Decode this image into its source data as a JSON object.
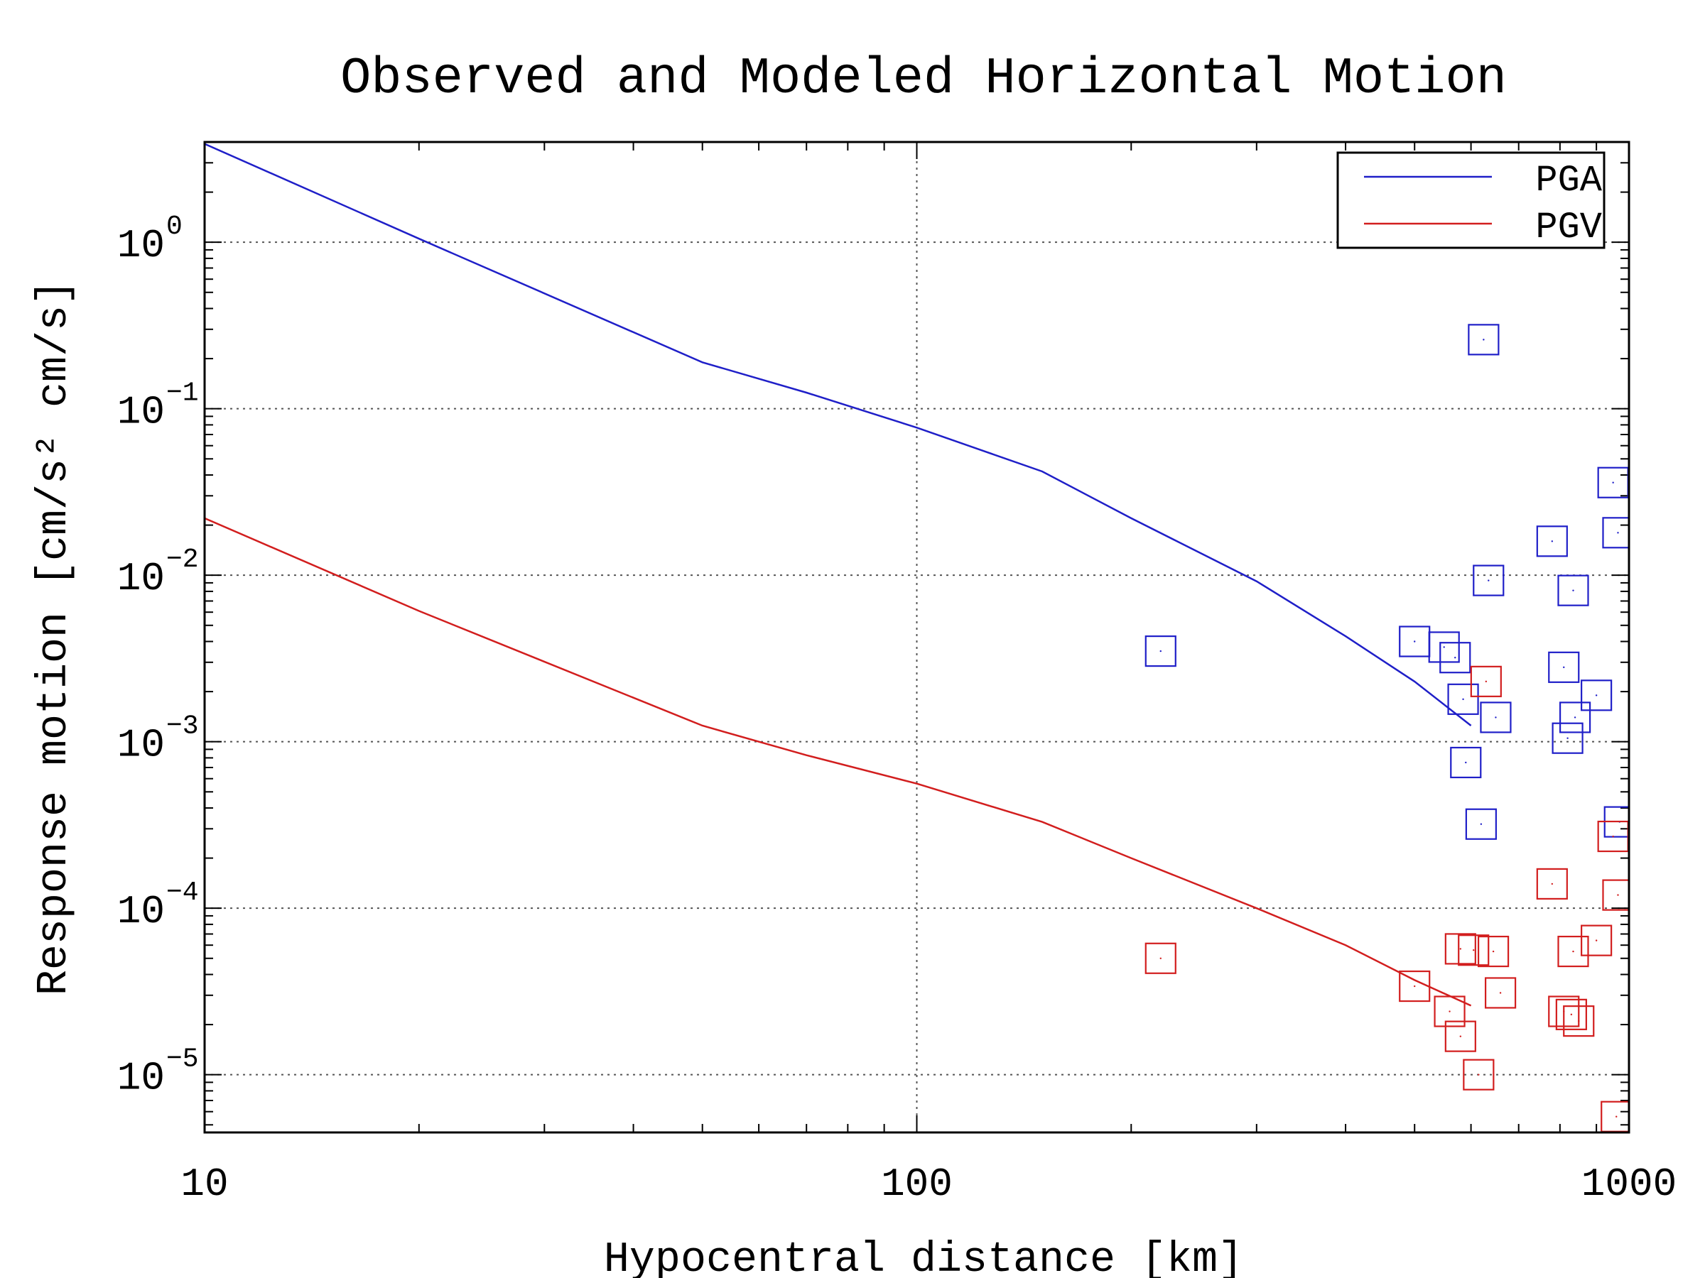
{
  "chart_data": {
    "type": "scatter",
    "title": "Observed and Modeled Horizontal Motion",
    "xlabel": "Hypocentral distance [km]",
    "ylabel": "Response motion [cm/s² cm/s]",
    "xscale": "log",
    "yscale": "log",
    "xlim": [
      10,
      1000
    ],
    "ylim": [
      4.5e-06,
      4
    ],
    "x_ticks": [
      {
        "value": 10,
        "label": "10"
      },
      {
        "value": 100,
        "label": "100"
      },
      {
        "value": 1000,
        "label": "1000"
      }
    ],
    "y_ticks": [
      {
        "value": 1e-05,
        "base": "10",
        "exp": "−5"
      },
      {
        "value": 0.0001,
        "base": "10",
        "exp": "−4"
      },
      {
        "value": 0.001,
        "base": "10",
        "exp": "−3"
      },
      {
        "value": 0.01,
        "base": "10",
        "exp": "−2"
      },
      {
        "value": 0.1,
        "base": "10",
        "exp": "−1"
      },
      {
        "value": 1,
        "base": "10",
        "exp": "0"
      }
    ],
    "grid": true,
    "legend_position": "top-right",
    "series": [
      {
        "name": "PGA",
        "color": "#1f1fc8",
        "model_curve": [
          [
            10,
            3.9
          ],
          [
            20,
            1.05
          ],
          [
            50,
            0.19
          ],
          [
            70,
            0.125
          ],
          [
            100,
            0.077
          ],
          [
            150,
            0.042
          ],
          [
            200,
            0.022
          ],
          [
            300,
            0.0092
          ],
          [
            400,
            0.0043
          ],
          [
            500,
            0.0023
          ],
          [
            600,
            0.00125
          ]
        ],
        "observations": [
          [
            220,
            0.0035
          ],
          [
            500,
            0.004
          ],
          [
            550,
            0.0037
          ],
          [
            570,
            0.0032
          ],
          [
            585,
            0.0018
          ],
          [
            590,
            0.00075
          ],
          [
            620,
            0.00032
          ],
          [
            625,
            0.26
          ],
          [
            635,
            0.0093
          ],
          [
            650,
            0.0014
          ],
          [
            780,
            0.016
          ],
          [
            810,
            0.0028
          ],
          [
            820,
            0.00105
          ],
          [
            835,
            0.0081
          ],
          [
            840,
            0.0014
          ],
          [
            900,
            0.0019
          ],
          [
            950,
            0.036
          ],
          [
            965,
            0.018
          ],
          [
            970,
            0.00033
          ]
        ]
      },
      {
        "name": "PGV",
        "color": "#d21e1e",
        "model_curve": [
          [
            10,
            0.022
          ],
          [
            20,
            0.0061
          ],
          [
            50,
            0.00125
          ],
          [
            70,
            0.00083
          ],
          [
            100,
            0.00056
          ],
          [
            150,
            0.00033
          ],
          [
            200,
            0.0002
          ],
          [
            300,
            0.0001
          ],
          [
            400,
            6e-05
          ],
          [
            500,
            3.7e-05
          ],
          [
            600,
            2.6e-05
          ]
        ],
        "observations": [
          [
            220,
            5e-05
          ],
          [
            500,
            3.4e-05
          ],
          [
            560,
            2.4e-05
          ],
          [
            580,
            1.7e-05
          ],
          [
            580,
            5.7e-05
          ],
          [
            605,
            5.6e-05
          ],
          [
            615,
            1e-05
          ],
          [
            630,
            0.0023
          ],
          [
            645,
            5.5e-05
          ],
          [
            660,
            3.1e-05
          ],
          [
            780,
            0.00014
          ],
          [
            810,
            2.4e-05
          ],
          [
            830,
            2.3e-05
          ],
          [
            835,
            5.5e-05
          ],
          [
            850,
            2.1e-05
          ],
          [
            900,
            6.4e-05
          ],
          [
            950,
            0.00027
          ],
          [
            965,
            0.00012
          ],
          [
            960,
            5.6e-06
          ]
        ]
      }
    ]
  }
}
